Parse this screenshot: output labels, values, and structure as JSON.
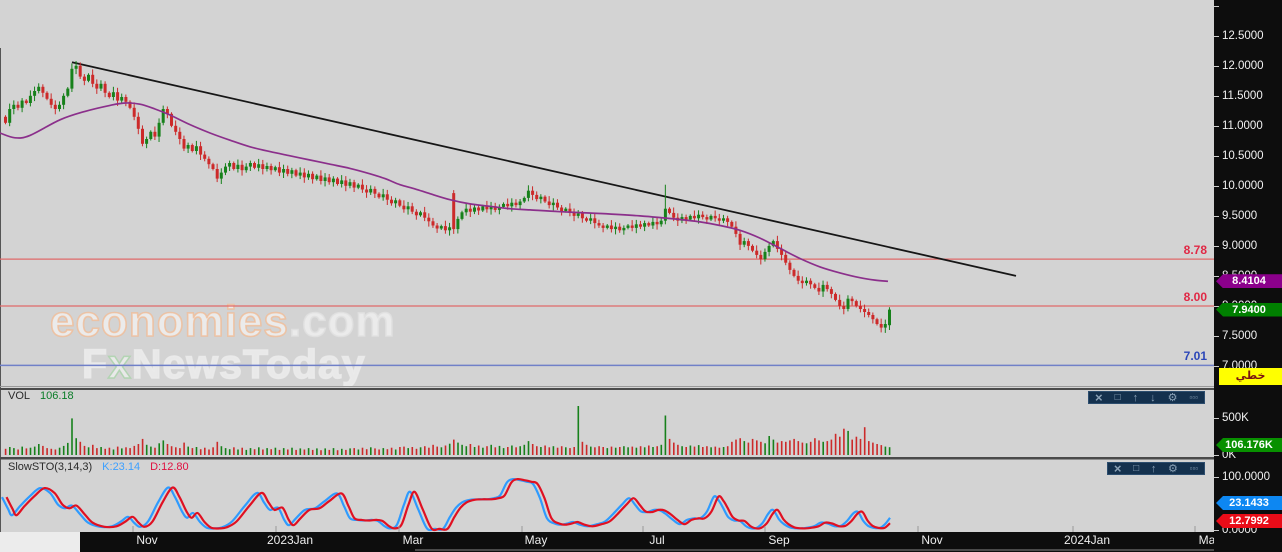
{
  "watermark": {
    "line1_main": "economies",
    "line1_suffix": ".com",
    "line2_pre": "F",
    "line2_x": "x",
    "line2_post": "NewsToday"
  },
  "price_axis": {
    "labels": [
      "12.5000",
      "12.0000",
      "11.5000",
      "11.0000",
      "10.5000",
      "10.0000",
      "9.5000",
      "9.0000",
      "8.5000",
      "8.0000",
      "7.5000",
      "7.0000"
    ],
    "values": [
      12.5,
      12.0,
      11.5,
      11.0,
      10.5,
      10.0,
      9.5,
      9.0,
      8.5,
      8.0,
      7.5,
      7.0
    ],
    "unlabeled_tick_values": [
      13.0
    ]
  },
  "badges": {
    "ma_value": "8.4104",
    "ma_color": "#8b008b",
    "price_value": "7.9400",
    "price_color": "#008000",
    "scale_label": "خطي",
    "vol_value": "106.176K",
    "vol_color": "#089000",
    "sto_k": "23.1433",
    "sto_k_color": "#0d87f2",
    "sto_d": "12.7992",
    "sto_d_color": "#ea0c18"
  },
  "volume_panel": {
    "title": "VOL",
    "value": "106.18",
    "axis": [
      {
        "text": "500K",
        "value": 500
      },
      {
        "text": "0K",
        "value": 0
      }
    ]
  },
  "sto_panel": {
    "title": "SlowSTO(3,14,3)",
    "k_label": "K:23.14",
    "d_label": "D:12.80",
    "axis": [
      {
        "text": "100.0000",
        "value": 100
      },
      {
        "text": "0.0000",
        "value": 0
      }
    ]
  },
  "panel_buttons": {
    "volume": [
      "close",
      "maximize",
      "move-up",
      "move-down",
      "settings",
      "more"
    ],
    "sto": [
      "close",
      "maximize",
      "move-up",
      "settings",
      "more"
    ],
    "glyphs": {
      "close": "×",
      "maximize": "□",
      "move-up": "↑",
      "move-down": "↓",
      "settings": "⚙",
      "more": "▫▫▫"
    }
  },
  "levels": [
    {
      "label": "8.78",
      "value": 8.78,
      "line_color": "#e06a6a",
      "label_color": "#e02845"
    },
    {
      "label": "8.00",
      "value": 8.0,
      "line_color": "#e06a6a",
      "label_color": "#e02845"
    },
    {
      "label": "7.01",
      "value": 7.01,
      "line_color": "#7080c8",
      "label_color": "#2b46b8"
    }
  ],
  "x_axis": {
    "ticks": [
      {
        "label": "Nov",
        "x": 147
      },
      {
        "label": "2023Jan",
        "x": 290
      },
      {
        "label": "Mar",
        "x": 413
      },
      {
        "label": "May",
        "x": 536
      },
      {
        "label": "Jul",
        "x": 657
      },
      {
        "label": "Sep",
        "x": 779
      },
      {
        "label": "Nov",
        "x": 932
      },
      {
        "label": "2024Jan",
        "x": 1087
      },
      {
        "label": "Mar",
        "x": 1209
      }
    ]
  },
  "chart_data": {
    "type": "candlestick",
    "price": {
      "ylim": [
        6.617,
        13.095
      ],
      "up_color": "#17811b",
      "down_color": "#cc2a2a",
      "first_open": 11.15,
      "closes": [
        11.05,
        11.28,
        11.35,
        11.3,
        11.42,
        11.38,
        11.5,
        11.58,
        11.65,
        11.55,
        11.45,
        11.35,
        11.28,
        11.35,
        11.5,
        11.62,
        11.95,
        12.0,
        11.82,
        11.75,
        11.85,
        11.7,
        11.62,
        11.7,
        11.55,
        11.48,
        11.56,
        11.42,
        11.48,
        11.4,
        11.3,
        11.15,
        10.95,
        10.7,
        10.78,
        10.9,
        10.82,
        11.05,
        11.28,
        11.2,
        11.0,
        10.9,
        10.78,
        10.62,
        10.68,
        10.58,
        10.66,
        10.52,
        10.45,
        10.36,
        10.28,
        10.12,
        10.22,
        10.32,
        10.38,
        10.28,
        10.35,
        10.26,
        10.32,
        10.38,
        10.3,
        10.36,
        10.28,
        10.33,
        10.26,
        10.31,
        10.22,
        10.28,
        10.2,
        10.26,
        10.17,
        10.22,
        10.14,
        10.2,
        10.11,
        10.17,
        10.08,
        10.14,
        10.06,
        10.12,
        10.03,
        10.09,
        10.0,
        10.06,
        9.97,
        10.02,
        9.94,
        9.89,
        9.95,
        9.87,
        9.81,
        9.86,
        9.77,
        9.71,
        9.76,
        9.67,
        9.61,
        9.66,
        9.57,
        9.51,
        9.56,
        9.47,
        9.41,
        9.34,
        9.29,
        9.33,
        9.26,
        9.31,
        9.28,
        9.45,
        9.56,
        9.62,
        9.57,
        9.64,
        9.59,
        9.66,
        9.61,
        9.66,
        9.6,
        9.65,
        9.7,
        9.66,
        9.72,
        9.68,
        9.74,
        9.8,
        9.92,
        9.85,
        9.78,
        9.82,
        9.74,
        9.68,
        9.72,
        9.64,
        9.58,
        9.62,
        9.55,
        9.5,
        9.54,
        9.46,
        9.42,
        9.46,
        9.38,
        9.34,
        9.3,
        9.34,
        9.28,
        9.32,
        9.26,
        9.3,
        9.34,
        9.3,
        9.36,
        9.32,
        9.38,
        9.34,
        9.4,
        9.36,
        9.42,
        9.62,
        9.55,
        9.47,
        9.42,
        9.48,
        9.44,
        9.5,
        9.46,
        9.52,
        9.48,
        9.44,
        9.5,
        9.46,
        9.42,
        9.46,
        9.4,
        9.32,
        9.2,
        9.02,
        9.08,
        9.0,
        8.92,
        8.85,
        8.78,
        8.9,
        9.0,
        9.08,
        8.95,
        8.85,
        8.72,
        8.6,
        8.5,
        8.42,
        8.38,
        8.42,
        8.36,
        8.3,
        8.24,
        8.35,
        8.28,
        8.2,
        8.1,
        8.0,
        7.95,
        8.12,
        8.08,
        8.0,
        7.95,
        7.9,
        7.85,
        7.78,
        7.7,
        7.64,
        7.7,
        7.94
      ],
      "overrides": [
        {
          "i": 17,
          "h": 12.08
        },
        {
          "i": 108,
          "o": 9.88,
          "h": 9.93,
          "l": 9.2,
          "c": 9.28
        },
        {
          "i": 159,
          "o": 9.42,
          "h": 10.02,
          "l": 9.36,
          "c": 9.62
        },
        {
          "i": 211,
          "l": 7.56
        },
        {
          "i": 213,
          "o": 7.68,
          "h": 7.98,
          "l": 7.6,
          "c": 7.94
        }
      ]
    },
    "ma_line": {
      "color": "#8b2f8b",
      "points": [
        [
          0,
          10.88
        ],
        [
          15,
          10.8
        ],
        [
          30,
          10.84
        ],
        [
          60,
          11.1
        ],
        [
          85,
          11.24
        ],
        [
          110,
          11.34
        ],
        [
          125,
          11.38
        ],
        [
          140,
          11.36
        ],
        [
          155,
          11.28
        ],
        [
          170,
          11.18
        ],
        [
          190,
          11.02
        ],
        [
          210,
          10.88
        ],
        [
          230,
          10.76
        ],
        [
          250,
          10.65
        ],
        [
          270,
          10.57
        ],
        [
          290,
          10.5
        ],
        [
          310,
          10.43
        ],
        [
          330,
          10.36
        ],
        [
          350,
          10.29
        ],
        [
          370,
          10.2
        ],
        [
          385,
          10.12
        ],
        [
          400,
          10.02
        ],
        [
          415,
          9.95
        ],
        [
          430,
          9.87
        ],
        [
          450,
          9.77
        ],
        [
          470,
          9.7
        ],
        [
          490,
          9.66
        ],
        [
          510,
          9.62
        ],
        [
          530,
          9.6
        ],
        [
          560,
          9.57
        ],
        [
          600,
          9.54
        ],
        [
          640,
          9.5
        ],
        [
          680,
          9.44
        ],
        [
          700,
          9.4
        ],
        [
          720,
          9.34
        ],
        [
          740,
          9.26
        ],
        [
          760,
          9.13
        ],
        [
          780,
          8.96
        ],
        [
          800,
          8.79
        ],
        [
          820,
          8.65
        ],
        [
          840,
          8.55
        ],
        [
          860,
          8.47
        ],
        [
          875,
          8.43
        ],
        [
          888,
          8.41
        ]
      ]
    },
    "trendline": {
      "color": "#161616",
      "x1": 72,
      "price1": 12.06,
      "x2": 1016,
      "price2": 8.5
    },
    "volume": {
      "ylim": [
        0,
        930
      ],
      "values": [
        85,
        110,
        95,
        75,
        115,
        90,
        100,
        115,
        150,
        125,
        95,
        85,
        75,
        100,
        125,
        165,
        500,
        230,
        180,
        125,
        105,
        140,
        95,
        110,
        85,
        100,
        75,
        115,
        90,
        105,
        95,
        125,
        150,
        220,
        140,
        115,
        100,
        160,
        200,
        150,
        120,
        105,
        95,
        170,
        115,
        95,
        110,
        80,
        100,
        75,
        105,
        180,
        120,
        95,
        80,
        105,
        75,
        100,
        70,
        95,
        80,
        105,
        75,
        95,
        80,
        100,
        70,
        95,
        75,
        100,
        70,
        90,
        75,
        95,
        70,
        90,
        65,
        90,
        70,
        95,
        65,
        85,
        70,
        90,
        95,
        75,
        100,
        80,
        105,
        90,
        75,
        95,
        80,
        100,
        75,
        110,
        115,
        95,
        110,
        85,
        105,
        120,
        100,
        140,
        115,
        105,
        130,
        155,
        210,
        170,
        140,
        120,
        150,
        110,
        130,
        100,
        120,
        140,
        105,
        125,
        95,
        110,
        130,
        105,
        120,
        140,
        190,
        150,
        120,
        110,
        130,
        105,
        120,
        100,
        120,
        105,
        95,
        110,
        670,
        180,
        140,
        115,
        105,
        120,
        110,
        95,
        115,
        100,
        110,
        120,
        105,
        115,
        100,
        120,
        105,
        130,
        110,
        120,
        140,
        540,
        220,
        170,
        140,
        120,
        110,
        130,
        115,
        135,
        110,
        120,
        105,
        115,
        100,
        110,
        120,
        180,
        210,
        230,
        190,
        170,
        220,
        200,
        180,
        160,
        260,
        210,
        170,
        190,
        180,
        200,
        220,
        190,
        170,
        160,
        180,
        230,
        200,
        180,
        190,
        210,
        290,
        250,
        360,
        330,
        210,
        250,
        220,
        380,
        190,
        170,
        150,
        135,
        115,
        106
      ]
    },
    "stochastic": {
      "k_color": "#2f9bfe",
      "d_color": "#e01022",
      "ylim": [
        0,
        100
      ],
      "k_points": [
        [
          2,
          62
        ],
        [
          8,
          40
        ],
        [
          12,
          28
        ],
        [
          20,
          45
        ],
        [
          30,
          64
        ],
        [
          40,
          79
        ],
        [
          50,
          70
        ],
        [
          58,
          48
        ],
        [
          65,
          41
        ],
        [
          72,
          46
        ],
        [
          80,
          30
        ],
        [
          88,
          14
        ],
        [
          100,
          6
        ],
        [
          112,
          7
        ],
        [
          121,
          16
        ],
        [
          128,
          25
        ],
        [
          134,
          14
        ],
        [
          140,
          6
        ],
        [
          148,
          16
        ],
        [
          158,
          52
        ],
        [
          168,
          80
        ],
        [
          175,
          62
        ],
        [
          182,
          35
        ],
        [
          187,
          23
        ],
        [
          193,
          32
        ],
        [
          200,
          15
        ],
        [
          207,
          4
        ],
        [
          215,
          3
        ],
        [
          222,
          5
        ],
        [
          232,
          16
        ],
        [
          245,
          46
        ],
        [
          257,
          70
        ],
        [
          264,
          52
        ],
        [
          270,
          38
        ],
        [
          278,
          42
        ],
        [
          284,
          20
        ],
        [
          289,
          9
        ],
        [
          296,
          22
        ],
        [
          305,
          38
        ],
        [
          315,
          41
        ],
        [
          325,
          55
        ],
        [
          337,
          69
        ],
        [
          344,
          45
        ],
        [
          350,
          22
        ],
        [
          357,
          19
        ],
        [
          365,
          18
        ],
        [
          372,
          19
        ],
        [
          378,
          17
        ],
        [
          384,
          8
        ],
        [
          390,
          3
        ],
        [
          397,
          10
        ],
        [
          404,
          48
        ],
        [
          410,
          72
        ],
        [
          418,
          40
        ],
        [
          427,
          3
        ],
        [
          435,
          2
        ],
        [
          443,
          2
        ],
        [
          450,
          25
        ],
        [
          456,
          42
        ],
        [
          462,
          52
        ],
        [
          470,
          57
        ],
        [
          478,
          58
        ],
        [
          487,
          58
        ],
        [
          494,
          60
        ],
        [
          500,
          65
        ],
        [
          507,
          90
        ],
        [
          513,
          96
        ],
        [
          520,
          94
        ],
        [
          527,
          91
        ],
        [
          533,
          87
        ],
        [
          540,
          60
        ],
        [
          547,
          22
        ],
        [
          555,
          12
        ],
        [
          561,
          10
        ],
        [
          567,
          12
        ],
        [
          573,
          15
        ],
        [
          580,
          10
        ],
        [
          588,
          7
        ],
        [
          597,
          11
        ],
        [
          605,
          16
        ],
        [
          613,
          30
        ],
        [
          622,
          48
        ],
        [
          629,
          60
        ],
        [
          635,
          48
        ],
        [
          641,
          35
        ],
        [
          648,
          34
        ],
        [
          654,
          38
        ],
        [
          660,
          37
        ],
        [
          666,
          30
        ],
        [
          673,
          19
        ],
        [
          680,
          11
        ],
        [
          687,
          19
        ],
        [
          694,
          22
        ],
        [
          700,
          22
        ],
        [
          707,
          35
        ],
        [
          714,
          63
        ],
        [
          719,
          55
        ],
        [
          723,
          42
        ],
        [
          728,
          25
        ],
        [
          734,
          18
        ],
        [
          740,
          17
        ],
        [
          747,
          6
        ],
        [
          755,
          3
        ],
        [
          762,
          12
        ],
        [
          768,
          30
        ],
        [
          773,
          38
        ],
        [
          779,
          20
        ],
        [
          784,
          11
        ],
        [
          790,
          5
        ],
        [
          798,
          3
        ],
        [
          806,
          4
        ],
        [
          814,
          7
        ],
        [
          821,
          14
        ],
        [
          828,
          12
        ],
        [
          835,
          7
        ],
        [
          841,
          8
        ],
        [
          847,
          17
        ],
        [
          853,
          31
        ],
        [
          858,
          34
        ],
        [
          863,
          18
        ],
        [
          868,
          8
        ],
        [
          874,
          4
        ],
        [
          880,
          4
        ],
        [
          885,
          11
        ],
        [
          890,
          23
        ]
      ],
      "d_end_value": 12.8,
      "d_offset_x": 4.5
    }
  }
}
